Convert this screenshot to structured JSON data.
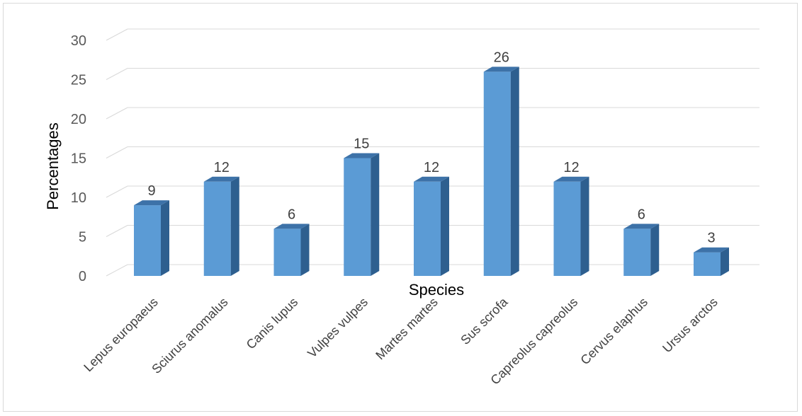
{
  "chart_data": {
    "type": "bar",
    "style": "3d-column",
    "categories": [
      "Lepus europaeus",
      "Sciurus anomalus",
      "Canis lupus",
      "Vulpes vulpes",
      "Martes martes",
      "Sus scrofa",
      "Capreolus capreolus",
      "Cervus elaphus",
      "Ursus arctos"
    ],
    "values": [
      9,
      12,
      6,
      15,
      12,
      26,
      12,
      6,
      3
    ],
    "data_labels": [
      "9",
      "12",
      "6",
      "15",
      "12",
      "26",
      "12",
      "6",
      "3"
    ],
    "xlabel": "Species",
    "ylabel": "Percentages",
    "ylim": [
      0,
      30
    ],
    "yticks": [
      0,
      5,
      10,
      15,
      20,
      25,
      30
    ],
    "grid": true,
    "legend": "none",
    "colors": {
      "front": "#5b9bd5",
      "side": "#2e5f8f",
      "top": "#3d72a8"
    }
  }
}
